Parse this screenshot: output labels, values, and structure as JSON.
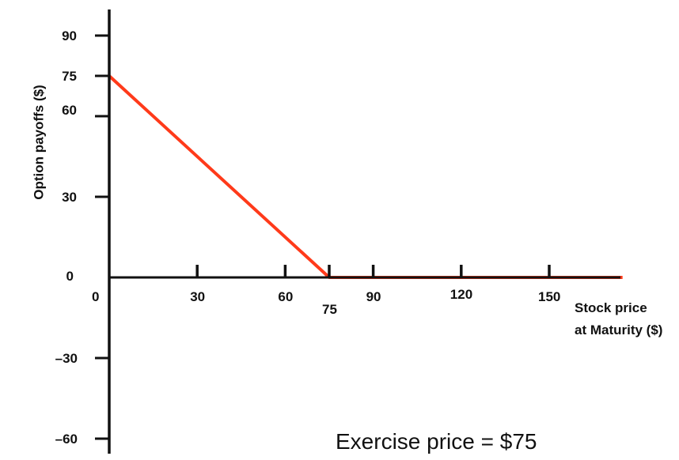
{
  "chart_data": {
    "type": "line",
    "xlabel": [
      "Stock price",
      "at Maturity ($)"
    ],
    "ylabel": "Option payoffs ($)",
    "annotation": "Exercise price = $75",
    "xlim": [
      0,
      175
    ],
    "ylim": [
      -65,
      100
    ],
    "x_ticks": [
      0,
      30,
      60,
      75,
      90,
      120,
      150
    ],
    "x_tick_labels": [
      "0",
      "30",
      "60",
      "75",
      "90",
      "120",
      "150"
    ],
    "y_ticks": [
      90,
      75,
      60,
      30,
      0,
      -30,
      -60
    ],
    "y_tick_labels": [
      "90",
      "75",
      "60",
      "30",
      "0",
      "–30",
      "–60"
    ],
    "series": [
      {
        "x": [
          0,
          75,
          175
        ],
        "y": [
          75,
          0,
          0
        ],
        "color": "#ff3a1a"
      }
    ],
    "grid": false
  }
}
